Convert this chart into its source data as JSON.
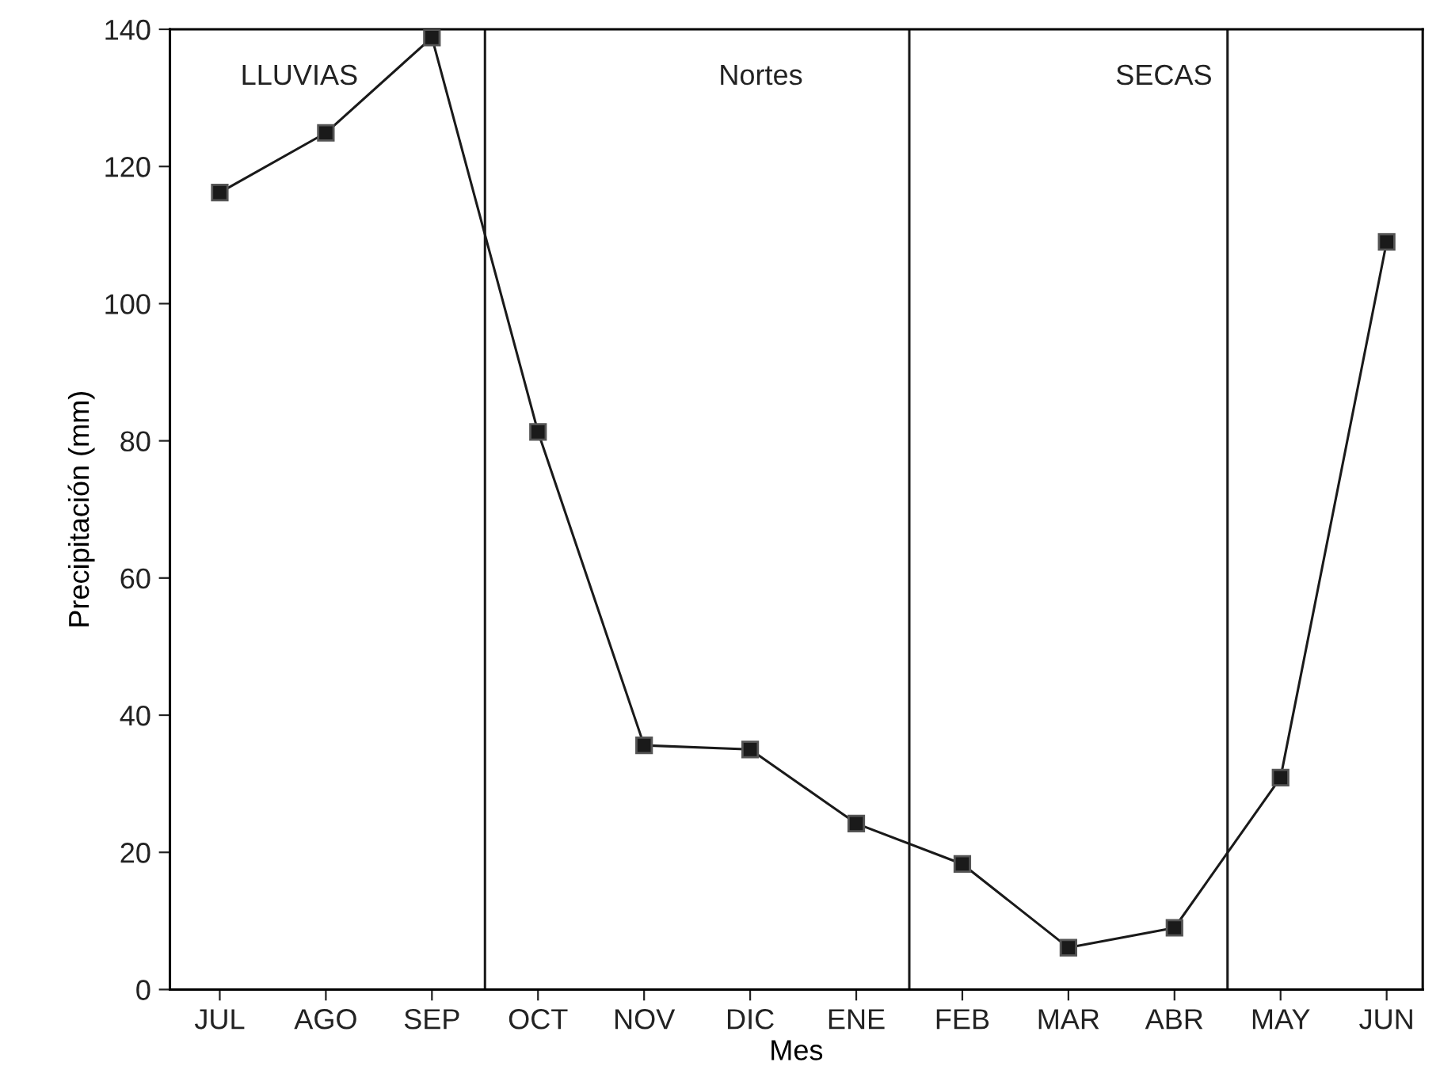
{
  "chart_data": {
    "type": "line",
    "xlabel": "Mes",
    "ylabel": "Precipitación (mm)",
    "categories": [
      "JUL",
      "AGO",
      "SEP",
      "OCT",
      "NOV",
      "DIC",
      "ENE",
      "FEB",
      "MAR",
      "ABR",
      "MAY",
      "JUN"
    ],
    "series": [
      {
        "color": "#1a1a1a",
        "values": [
          116.2,
          124.9,
          138.8,
          81.3,
          35.6,
          35,
          24.2,
          18.3,
          6.1,
          9,
          30.9,
          109
        ]
      }
    ],
    "ylim": [
      0,
      140
    ],
    "yticks": [
      0,
      20,
      40,
      60,
      80,
      100,
      120,
      140
    ],
    "annotations": [
      "LLUVIAS",
      "Nortes",
      "SECAS"
    ],
    "marker": "square",
    "line_style": "solid",
    "grid": false,
    "legend": false
  }
}
